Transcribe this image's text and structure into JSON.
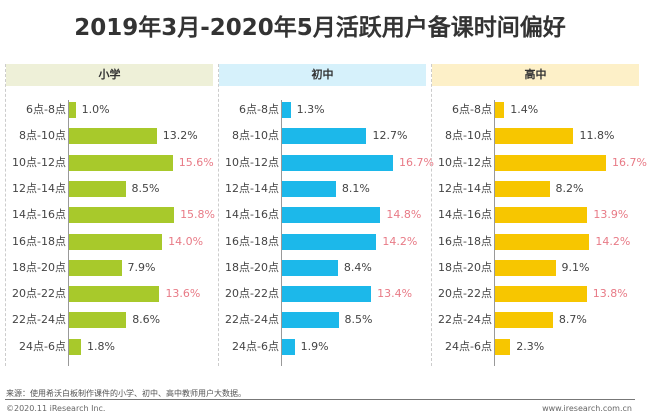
{
  "chart_data": {
    "type": "bar",
    "title": "2019年3月-2020年5月活跃用户备课时间偏好",
    "categories": [
      "6点-8点",
      "8点-10点",
      "10点-12点",
      "12点-14点",
      "14点-16点",
      "16点-18点",
      "18点-20点",
      "20点-22点",
      "22点-24点",
      "24点-6点"
    ],
    "unit": "%",
    "series": [
      {
        "name": "小学",
        "color": "#a8c92b",
        "header_bg": "#eef0d8",
        "values": [
          1.0,
          13.2,
          15.6,
          8.5,
          15.8,
          14.0,
          7.9,
          13.6,
          8.6,
          1.8
        ],
        "highlight": [
          2,
          4,
          5,
          7
        ]
      },
      {
        "name": "初中",
        "color": "#1cb8ea",
        "header_bg": "#d6f1fb",
        "values": [
          1.3,
          12.7,
          16.7,
          8.1,
          14.8,
          14.2,
          8.4,
          13.4,
          8.5,
          1.9
        ],
        "highlight": [
          2,
          4,
          5,
          7
        ]
      },
      {
        "name": "高中",
        "color": "#f7c600",
        "header_bg": "#fdf0c8",
        "values": [
          1.4,
          11.8,
          16.7,
          8.2,
          13.9,
          14.2,
          9.1,
          13.8,
          8.7,
          2.3
        ],
        "highlight": [
          2,
          4,
          5,
          7
        ]
      }
    ],
    "highlight_color": "#e87a86"
  },
  "footer": {
    "source": "来源：使用希沃白板制作课件的小学、初中、高中教师用户大数据。",
    "copyright": "©2020.11 iResearch Inc.",
    "url": "www.iresearch.com.cn"
  }
}
